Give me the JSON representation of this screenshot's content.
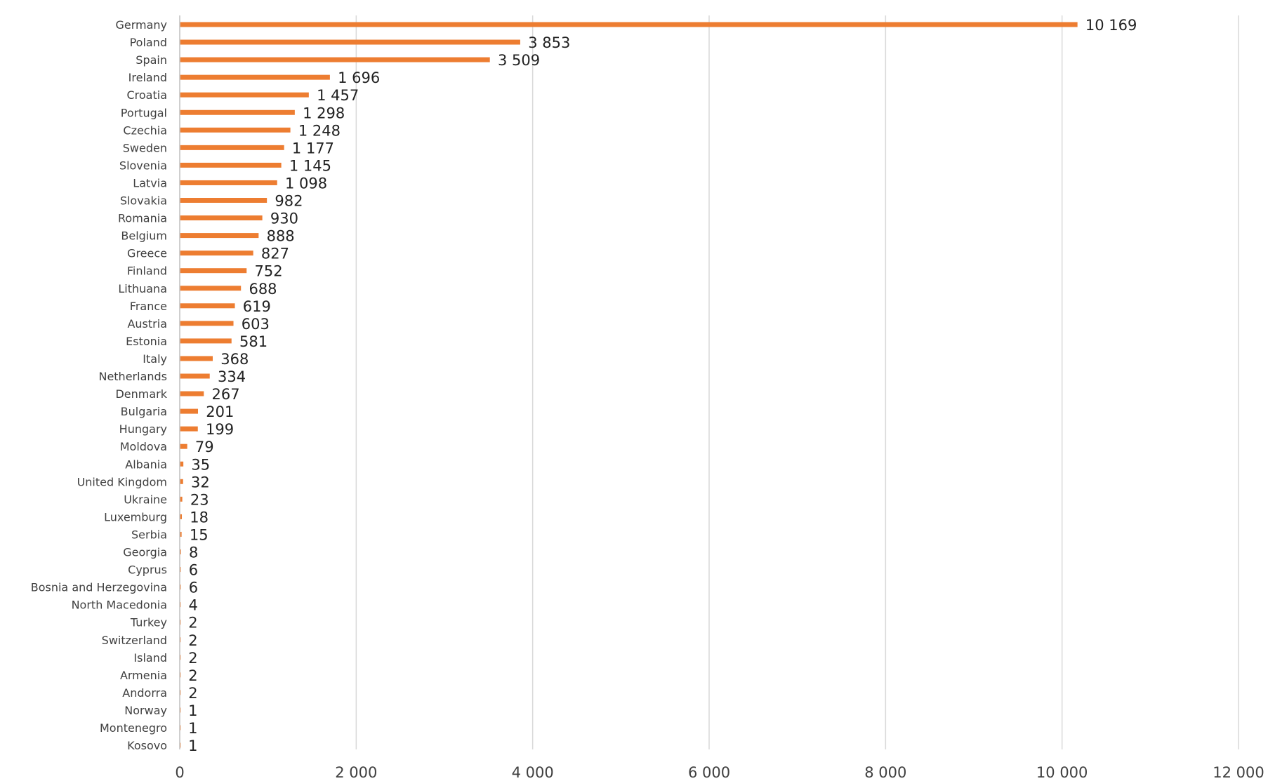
{
  "chart_data": {
    "type": "bar",
    "orientation": "horizontal",
    "title": "",
    "xlabel": "",
    "ylabel": "",
    "xlim": [
      0,
      12000
    ],
    "xticks": [
      0,
      2000,
      4000,
      6000,
      8000,
      10000,
      12000
    ],
    "xtick_labels": [
      "0",
      "2 000",
      "4 000",
      "6 000",
      "8 000",
      "10 000",
      "12 000"
    ],
    "grid": "vertical",
    "legend": "none",
    "bar_color": "#ED7D31",
    "categories": [
      "Germany",
      "Poland",
      "Spain",
      "Ireland",
      "Croatia",
      "Portugal",
      "Czechia",
      "Sweden",
      "Slovenia",
      "Latvia",
      "Slovakia",
      "Romania",
      "Belgium",
      "Greece",
      "Finland",
      "Lithuana",
      "France",
      "Austria",
      "Estonia",
      "Italy",
      "Netherlands",
      "Denmark",
      "Bulgaria",
      "Hungary",
      "Moldova",
      "Albania",
      "United Kingdom",
      "Ukraine",
      "Luxemburg",
      "Serbia",
      "Georgia",
      "Cyprus",
      "Bosnia and Herzegovina",
      "North Macedonia",
      "Turkey",
      "Switzerland",
      "Island",
      "Armenia",
      "Andorra",
      "Norway",
      "Montenegro",
      "Kosovo"
    ],
    "values": [
      10169,
      3853,
      3509,
      1696,
      1457,
      1298,
      1248,
      1177,
      1145,
      1098,
      982,
      930,
      888,
      827,
      752,
      688,
      619,
      603,
      581,
      368,
      334,
      267,
      201,
      199,
      79,
      35,
      32,
      23,
      18,
      15,
      8,
      6,
      6,
      4,
      2,
      2,
      2,
      2,
      2,
      1,
      1,
      1
    ],
    "value_labels": [
      "10 169",
      "3 853",
      "3 509",
      "1 696",
      "1 457",
      "1 298",
      "1 248",
      "1 177",
      "1 145",
      "1 098",
      "982",
      "930",
      "888",
      "827",
      "752",
      "688",
      "619",
      "603",
      "581",
      "368",
      "334",
      "267",
      "201",
      "199",
      "79",
      "35",
      "32",
      "23",
      "18",
      "15",
      "8",
      "6",
      "6",
      "4",
      "2",
      "2",
      "2",
      "2",
      "2",
      "1",
      "1",
      "1"
    ]
  }
}
